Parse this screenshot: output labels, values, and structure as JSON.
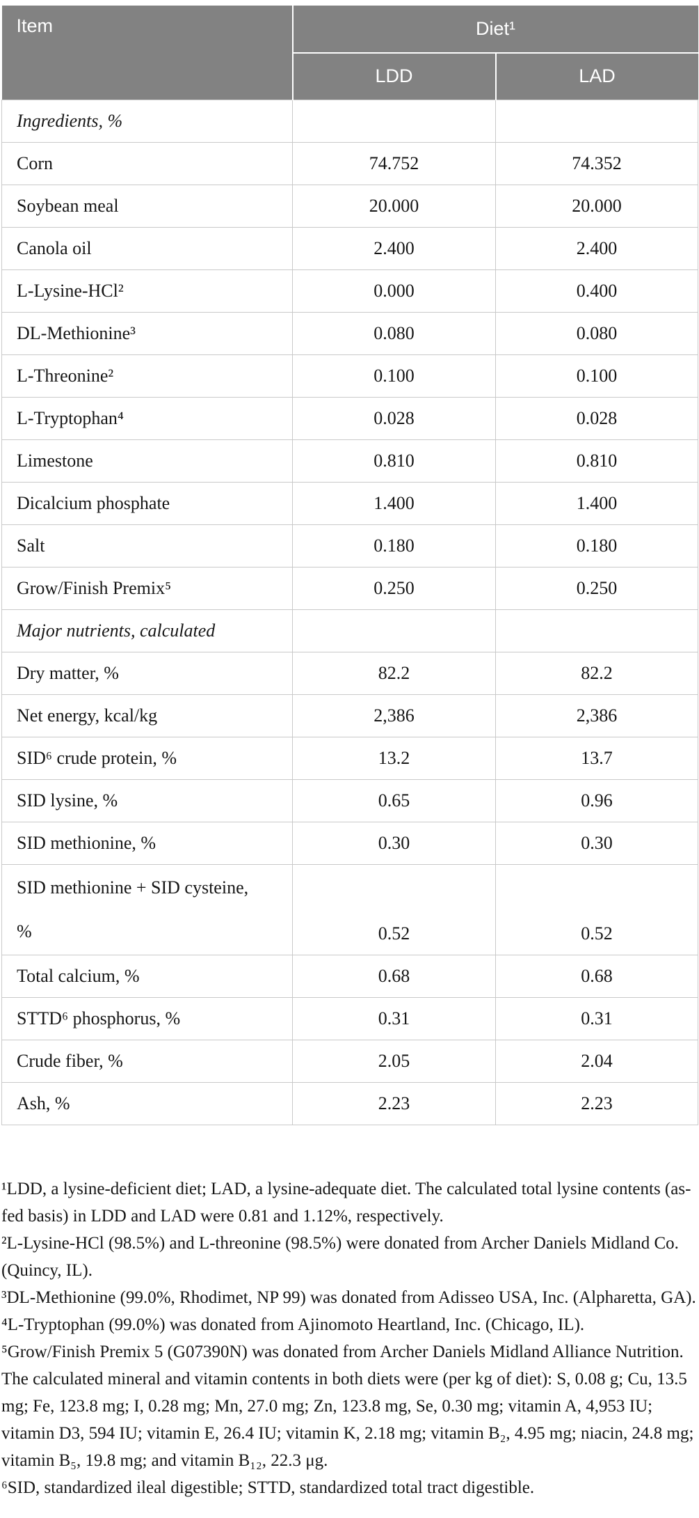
{
  "colors": {
    "header_bg": "#828282",
    "header_text": "#ffffff",
    "body_text": "#161616",
    "grid_line": "#c9c9c9",
    "page_bg": "#ffffff"
  },
  "table": {
    "header": {
      "item_label": "Item",
      "diet_label": "Diet¹",
      "columns": [
        "LDD",
        "LAD"
      ]
    },
    "rows": [
      {
        "label": "Ingredients, %",
        "type": "section",
        "ldd": "",
        "lad": ""
      },
      {
        "label": "Corn",
        "ldd": "74.752",
        "lad": "74.352"
      },
      {
        "label": "Soybean meal",
        "ldd": "20.000",
        "lad": "20.000"
      },
      {
        "label": "Canola oil",
        "ldd": "2.400",
        "lad": "2.400"
      },
      {
        "label": "L-Lysine-HCl²",
        "ldd": "0.000",
        "lad": "0.400"
      },
      {
        "label": "DL-Methionine³",
        "ldd": "0.080",
        "lad": "0.080"
      },
      {
        "label": "L-Threonine²",
        "ldd": "0.100",
        "lad": "0.100"
      },
      {
        "label": "L-Tryptophan⁴",
        "ldd": "0.028",
        "lad": "0.028"
      },
      {
        "label": "Limestone",
        "ldd": "0.810",
        "lad": "0.810"
      },
      {
        "label": "Dicalcium phosphate",
        "ldd": "1.400",
        "lad": "1.400"
      },
      {
        "label": "Salt",
        "ldd": "0.180",
        "lad": "0.180"
      },
      {
        "label": "Grow/Finish Premix⁵",
        "ldd": "0.250",
        "lad": "0.250"
      },
      {
        "label": "Major nutrients, calculated",
        "type": "section",
        "ldd": "",
        "lad": ""
      },
      {
        "label": "Dry matter, %",
        "ldd": "82.2",
        "lad": "82.2"
      },
      {
        "label": "Net energy, kcal/kg",
        "ldd": "2,386",
        "lad": "2,386"
      },
      {
        "label": "SID⁶ crude protein, %",
        "ldd": "13.2",
        "lad": "13.7"
      },
      {
        "label": "SID lysine, %",
        "ldd": "0.65",
        "lad": "0.96"
      },
      {
        "label": "SID methionine, %",
        "ldd": "0.30",
        "lad": "0.30"
      },
      {
        "label": "SID methionine + SID cysteine,\n%",
        "type": "tall",
        "ldd": "0.52",
        "lad": "0.52"
      },
      {
        "label": "Total calcium, %",
        "ldd": "0.68",
        "lad": "0.68"
      },
      {
        "label": "STTD⁶ phosphorus, %",
        "ldd": "0.31",
        "lad": "0.31"
      },
      {
        "label": "Crude fiber, %",
        "ldd": "2.05",
        "lad": "2.04"
      },
      {
        "label": "Ash, %",
        "ldd": "2.23",
        "lad": "2.23"
      }
    ],
    "footnotes": [
      "¹LDD, a lysine-deficient diet; LAD, a lysine-adequate diet. The calculated total lysine contents (as-fed basis) in LDD and LAD were 0.81 and 1.12%, respectively.",
      "²L-Lysine-HCl (98.5%) and L-threonine (98.5%) were donated from Archer Daniels Midland Co. (Quincy, IL).",
      "³DL-Methionine (99.0%, Rhodimet, NP 99) was donated from Adisseo USA, Inc. (Alpharetta, GA).",
      "⁴L-Tryptophan (99.0%) was donated from Ajinomoto Heartland, Inc. (Chicago, IL).",
      "⁵Grow/Finish Premix 5 (G07390N) was donated from Archer Daniels Midland Alliance Nutrition. The calculated mineral and vitamin contents in both diets were (per kg of diet): S, 0.08 g; Cu, 13.5 mg; Fe, 123.8 mg; I, 0.28 mg; Mn, 27.0 mg; Zn, 123.8 mg, Se, 0.30 mg; vitamin A, 4,953 IU; vitamin D3, 594 IU; vitamin E, 26.4 IU; vitamin K, 2.18 mg; vitamin B₂, 4.95 mg; niacin, 24.8 mg; vitamin B₅, 19.8 mg; and vitamin B₁₂, 22.3 μg.",
      "⁶SID, standardized ileal digestible; STTD, standardized total tract digestible."
    ]
  }
}
